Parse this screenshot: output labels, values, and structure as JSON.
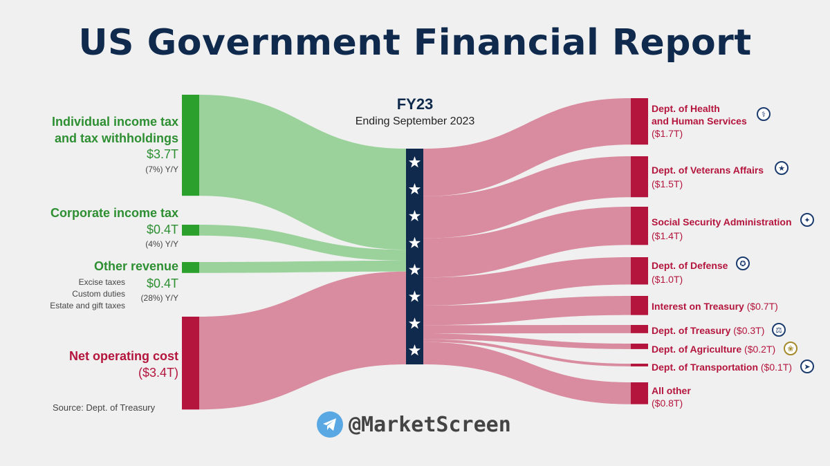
{
  "title": "US Government Financial Report",
  "period": {
    "label": "FY23",
    "sub": "Ending September 2023"
  },
  "sources_in": [
    {
      "name_line1": "Individual income tax",
      "name_line2": "and tax withholdings",
      "value": "$3.7T",
      "yoy": "(7%) Y/Y",
      "amount": 3.7
    },
    {
      "name_line1": "Corporate income tax",
      "value": "$0.4T",
      "yoy": "(4%) Y/Y",
      "amount": 0.4
    },
    {
      "name_line1": "Other revenue",
      "value": "$0.4T",
      "yoy": "(28%) Y/Y",
      "amount": 0.4,
      "details": [
        "Excise taxes",
        "Custom duties",
        "Estate and gift taxes"
      ]
    },
    {
      "name_line1": "Net operating cost",
      "value": "($3.4T)",
      "amount": 3.4
    }
  ],
  "spending": [
    {
      "name_line1": "Dept. of Health",
      "name_line2": "and Human Services",
      "value": "($1.7T)",
      "amount": 1.7,
      "icon": "hhs-seal-icon"
    },
    {
      "name_line1": "Dept. of Veterans Affairs",
      "value": "($1.5T)",
      "amount": 1.5,
      "icon": "va-seal-icon"
    },
    {
      "name_line1": "Social Security Administration",
      "value": "($1.4T)",
      "amount": 1.4,
      "icon": "ssa-seal-icon"
    },
    {
      "name_line1": "Dept. of Defense",
      "value": "($1.0T)",
      "amount": 1.0,
      "icon": "dod-seal-icon"
    },
    {
      "name_line1": "Interest on Treasury",
      "value": "($0.7T)",
      "amount": 0.7
    },
    {
      "name_line1": "Dept. of Treasury",
      "value": "($0.3T)",
      "amount": 0.3,
      "icon": "treasury-seal-icon"
    },
    {
      "name_line1": "Dept. of Agriculture",
      "value": "($0.2T)",
      "amount": 0.2,
      "icon": "usda-seal-icon"
    },
    {
      "name_line1": "Dept. of Transportation",
      "value": "($0.1T)",
      "amount": 0.1,
      "icon": "dot-seal-icon"
    },
    {
      "name_line1": "All other",
      "value": "($0.8T)",
      "amount": 0.8
    }
  ],
  "source_note": "Source: Dept. of Treasury",
  "watermark": "@MarketScreen",
  "colors": {
    "revenue": "#2ca02c",
    "revenue_flow": "#9bd29b",
    "cost": "#b4153d",
    "cost_flow": "#d98c9f",
    "center": "#0f2a4d",
    "title": "#0f2a4d"
  }
}
